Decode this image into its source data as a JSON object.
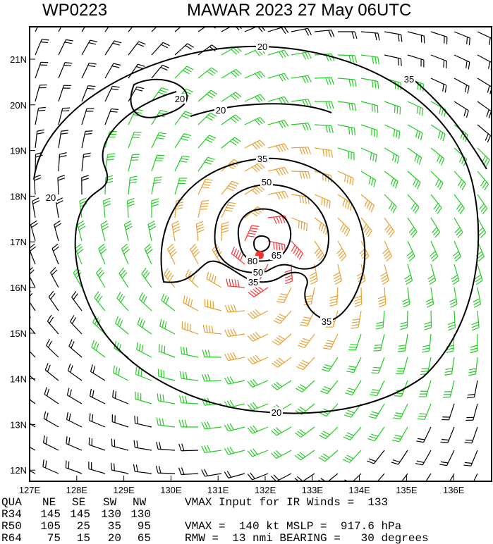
{
  "header": {
    "storm_id": "WP0223",
    "title": "MAWAR 2023 27 May 06UTC"
  },
  "lat_labels": [
    "21N",
    "20N",
    "19N",
    "18N",
    "17N",
    "16N",
    "15N",
    "14N",
    "13N",
    "12N"
  ],
  "lon_labels": [
    "127E",
    "128E",
    "129E",
    "130E",
    "131E",
    "132E",
    "133E",
    "134E",
    "135E",
    "136E"
  ],
  "contour_labels": [
    "20",
    "20",
    "20",
    "20",
    "20",
    "35",
    "35",
    "35",
    "35",
    "50",
    "50",
    "65",
    "80"
  ],
  "table": {
    "header": [
      "QUA",
      "NE",
      "SE",
      "SW",
      "NW"
    ],
    "rows": [
      [
        "R34",
        145,
        145,
        130,
        130
      ],
      [
        "R50",
        105,
        25,
        35,
        95
      ],
      [
        "R64",
        75,
        15,
        20,
        65
      ]
    ],
    "notes": [
      "VMAX Input for IR Winds =  133",
      "",
      "VMAX =  140 kt MSLP =  917.6 hPa",
      "RMW =  13 nmi BEARING =   30 degrees"
    ]
  }
}
